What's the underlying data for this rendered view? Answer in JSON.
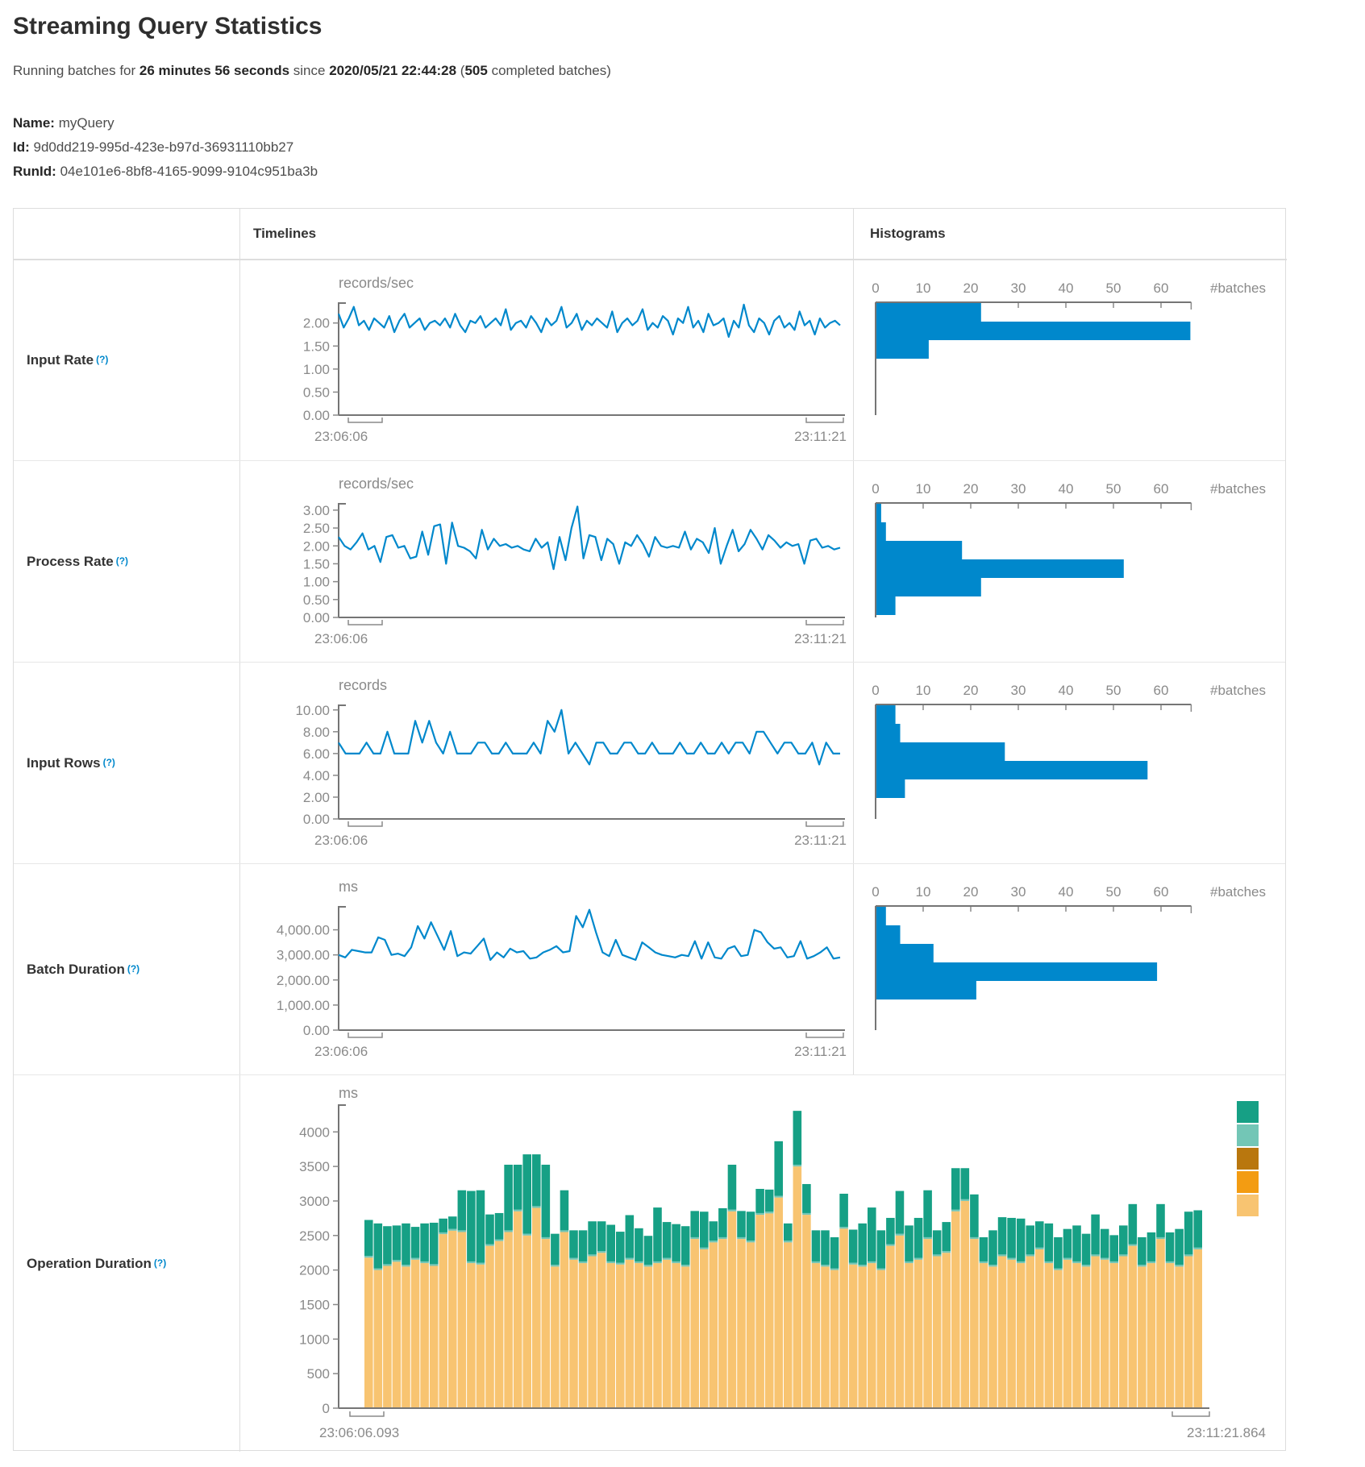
{
  "page": {
    "title": "Streaming Query Statistics"
  },
  "summary": {
    "p1": "Running batches for",
    "duration": "26 minutes 56 seconds",
    "p2": "since",
    "start_time": "2020/05/21 22:44:28",
    "paren": "(",
    "completed_count": "505",
    "p3": "completed batches)"
  },
  "query": {
    "name_label": "Name:",
    "name": "myQuery",
    "id_label": "Id:",
    "id": "9d0dd219-995d-423e-b97d-36931110bb27",
    "runid_label": "RunId:",
    "runid": "04e101e6-8bf8-4165-9099-9104c951ba3b"
  },
  "table": {
    "timelines_header": "Timelines",
    "histograms_header": "Histograms"
  },
  "colors": {
    "line_blue": "#0088CC",
    "bar_blue": "#0088CC",
    "axis_gray": "#757575",
    "label_gray": "#8a8a8a"
  },
  "rows": [
    {
      "label": "Input Rate",
      "help": "(?)"
    },
    {
      "label": "Process Rate",
      "help": "(?)"
    },
    {
      "label": "Input Rows",
      "help": "(?)"
    },
    {
      "label": "Batch Duration",
      "help": "(?)"
    },
    {
      "label": "Operation Duration",
      "help": "(?)"
    }
  ],
  "chart_data": [
    {
      "id": "input-rate-timeline",
      "type": "line",
      "title": "records/sec",
      "x_range": [
        "23:06:06",
        "23:11:21"
      ],
      "y_top": 2.45,
      "y_ticks": [
        {
          "v": 0,
          "label": "0.00"
        },
        {
          "v": 0.5,
          "label": "0.50"
        },
        {
          "v": 1,
          "label": "1.00"
        },
        {
          "v": 1.5,
          "label": "1.50"
        },
        {
          "v": 2,
          "label": "2.00"
        }
      ],
      "values": [
        2.2,
        1.9,
        2.1,
        2.35,
        1.95,
        2.05,
        1.85,
        2.1,
        2.0,
        1.9,
        2.15,
        1.8,
        2.05,
        2.2,
        1.9,
        2.0,
        2.1,
        1.85,
        2.0,
        2.05,
        1.95,
        2.1,
        1.9,
        2.2,
        1.95,
        1.8,
        2.05,
        2.0,
        2.15,
        1.9,
        2.0,
        2.1,
        1.95,
        2.3,
        1.85,
        2.0,
        2.05,
        1.9,
        2.15,
        2.0,
        1.8,
        2.1,
        1.95,
        2.05,
        2.35,
        1.9,
        2.0,
        2.2,
        1.85,
        2.05,
        1.95,
        2.1,
        2.0,
        1.9,
        2.25,
        1.8,
        2.0,
        2.1,
        1.95,
        2.05,
        2.3,
        1.85,
        2.0,
        1.9,
        2.15,
        2.05,
        1.75,
        2.1,
        2.0,
        2.35,
        1.9,
        2.05,
        1.8,
        2.2,
        1.95,
        2.0,
        2.1,
        1.7,
        2.05,
        1.9,
        2.4,
        1.95,
        1.8,
        2.1,
        2.0,
        1.75,
        2.05,
        2.15,
        1.9,
        2.0,
        1.85,
        2.25,
        1.95,
        2.05,
        1.75,
        2.1,
        1.9,
        2.0,
        2.05,
        1.95
      ]
    },
    {
      "id": "input-rate-histogram",
      "type": "bar",
      "orientation": "horizontal",
      "xlabel": "#batches",
      "x_max": 66,
      "x_ticks": [
        {
          "v": 0,
          "label": "0"
        },
        {
          "v": 10,
          "label": "10"
        },
        {
          "v": 20,
          "label": "20"
        },
        {
          "v": 30,
          "label": "30"
        },
        {
          "v": 40,
          "label": "40"
        },
        {
          "v": 50,
          "label": "50"
        },
        {
          "v": 60,
          "label": "60"
        }
      ],
      "values": [
        22,
        66,
        11
      ]
    },
    {
      "id": "process-rate-timeline",
      "type": "line",
      "title": "records/sec",
      "x_range": [
        "23:06:06",
        "23:11:21"
      ],
      "y_top": 3.2,
      "y_ticks": [
        {
          "v": 0,
          "label": "0.00"
        },
        {
          "v": 0.5,
          "label": "0.50"
        },
        {
          "v": 1,
          "label": "1.00"
        },
        {
          "v": 1.5,
          "label": "1.50"
        },
        {
          "v": 2,
          "label": "2.00"
        },
        {
          "v": 2.5,
          "label": "2.50"
        },
        {
          "v": 3,
          "label": "3.00"
        }
      ],
      "values": [
        2.25,
        2.0,
        1.9,
        2.1,
        2.35,
        1.9,
        2.0,
        1.55,
        2.25,
        2.3,
        1.95,
        2.0,
        1.65,
        1.7,
        2.4,
        1.75,
        2.55,
        2.6,
        1.5,
        2.65,
        2.0,
        1.95,
        1.85,
        1.65,
        2.45,
        1.9,
        2.2,
        2.0,
        2.05,
        1.95,
        2.0,
        1.9,
        1.85,
        2.2,
        1.95,
        2.1,
        1.35,
        2.25,
        1.6,
        2.5,
        3.1,
        1.65,
        2.3,
        2.25,
        1.6,
        2.2,
        2.05,
        1.5,
        2.1,
        2.0,
        2.3,
        2.05,
        1.7,
        2.25,
        2.0,
        1.95,
        2.0,
        1.95,
        2.4,
        1.9,
        2.2,
        2.1,
        1.8,
        2.5,
        1.5,
        2.0,
        2.45,
        1.85,
        2.05,
        2.45,
        2.2,
        1.9,
        2.3,
        2.15,
        1.95,
        2.1,
        2.0,
        2.05,
        1.5,
        2.15,
        2.2,
        1.95,
        2.0,
        1.9,
        1.95
      ]
    },
    {
      "id": "process-rate-histogram",
      "type": "bar",
      "orientation": "horizontal",
      "xlabel": "#batches",
      "x_max": 66,
      "x_ticks": [
        {
          "v": 0,
          "label": "0"
        },
        {
          "v": 10,
          "label": "10"
        },
        {
          "v": 20,
          "label": "20"
        },
        {
          "v": 30,
          "label": "30"
        },
        {
          "v": 40,
          "label": "40"
        },
        {
          "v": 50,
          "label": "50"
        },
        {
          "v": 60,
          "label": "60"
        }
      ],
      "values": [
        1,
        2,
        18,
        52,
        22,
        4
      ]
    },
    {
      "id": "input-rows-timeline",
      "type": "line",
      "title": "records",
      "x_range": [
        "23:06:06",
        "23:11:21"
      ],
      "y_top": 10.5,
      "y_ticks": [
        {
          "v": 0,
          "label": "0.00"
        },
        {
          "v": 2,
          "label": "2.00"
        },
        {
          "v": 4,
          "label": "4.00"
        },
        {
          "v": 6,
          "label": "6.00"
        },
        {
          "v": 8,
          "label": "8.00"
        },
        {
          "v": 10,
          "label": "10.00"
        }
      ],
      "values": [
        7,
        6,
        6,
        6,
        7,
        6,
        6,
        8,
        6,
        6,
        6,
        9,
        7,
        9,
        7,
        6,
        8,
        6,
        6,
        6,
        7,
        7,
        6,
        6,
        7,
        6,
        6,
        6,
        7,
        6,
        9,
        8,
        10,
        6,
        7,
        6,
        5,
        7,
        7,
        6,
        6,
        7,
        7,
        6,
        6,
        7,
        6,
        6,
        6,
        7,
        6,
        6,
        7,
        6,
        6,
        7,
        6,
        7,
        7,
        6,
        8,
        8,
        7,
        6,
        7,
        7,
        6,
        6,
        7,
        5,
        7,
        6,
        6
      ]
    },
    {
      "id": "input-rows-histogram",
      "type": "bar",
      "orientation": "horizontal",
      "xlabel": "#batches",
      "x_max": 66,
      "x_ticks": [
        {
          "v": 0,
          "label": "0"
        },
        {
          "v": 10,
          "label": "10"
        },
        {
          "v": 20,
          "label": "20"
        },
        {
          "v": 30,
          "label": "30"
        },
        {
          "v": 40,
          "label": "40"
        },
        {
          "v": 50,
          "label": "50"
        },
        {
          "v": 60,
          "label": "60"
        }
      ],
      "values": [
        4,
        5,
        27,
        57,
        6
      ]
    },
    {
      "id": "batch-duration-timeline",
      "type": "line",
      "title": "ms",
      "x_range": [
        "23:06:06",
        "23:11:21"
      ],
      "y_top": 4950,
      "y_ticks": [
        {
          "v": 0,
          "label": "0.00"
        },
        {
          "v": 1000,
          "label": "1,000.00"
        },
        {
          "v": 2000,
          "label": "2,000.00"
        },
        {
          "v": 3000,
          "label": "3,000.00"
        },
        {
          "v": 4000,
          "label": "4,000.00"
        }
      ],
      "values": [
        3000,
        2900,
        3200,
        3150,
        3100,
        3100,
        3700,
        3600,
        3000,
        3050,
        2950,
        3300,
        4150,
        3650,
        4300,
        3750,
        3200,
        3950,
        2950,
        3100,
        3050,
        3350,
        3650,
        2800,
        3100,
        2900,
        3250,
        3100,
        3150,
        2850,
        2900,
        3100,
        3200,
        3350,
        3100,
        3150,
        4550,
        4100,
        4800,
        3900,
        3100,
        2950,
        3600,
        3000,
        2900,
        2800,
        3500,
        3300,
        3100,
        3000,
        2950,
        2900,
        3000,
        2950,
        3550,
        2850,
        3500,
        2900,
        2850,
        3250,
        3350,
        2950,
        3000,
        4000,
        3900,
        3500,
        3250,
        3300,
        2900,
        2950,
        3550,
        2850,
        2950,
        3100,
        3300,
        2850,
        2900
      ]
    },
    {
      "id": "batch-duration-histogram",
      "type": "bar",
      "orientation": "horizontal",
      "xlabel": "#batches",
      "x_max": 66,
      "x_ticks": [
        {
          "v": 0,
          "label": "0"
        },
        {
          "v": 10,
          "label": "10"
        },
        {
          "v": 20,
          "label": "20"
        },
        {
          "v": 30,
          "label": "30"
        },
        {
          "v": 40,
          "label": "40"
        },
        {
          "v": 50,
          "label": "50"
        },
        {
          "v": 60,
          "label": "60"
        }
      ],
      "values": [
        2,
        5,
        12,
        59,
        21
      ]
    },
    {
      "id": "operation-duration-stacked",
      "type": "stacked-bar",
      "title": "ms",
      "x_range": [
        "23:06:06.093",
        "23:11:21.864"
      ],
      "y_top": 4400,
      "y_ticks": [
        {
          "v": 0,
          "label": "0"
        },
        {
          "v": 500,
          "label": "500"
        },
        {
          "v": 1000,
          "label": "1000"
        },
        {
          "v": 1500,
          "label": "1500"
        },
        {
          "v": 2000,
          "label": "2000"
        },
        {
          "v": 2500,
          "label": "2500"
        },
        {
          "v": 3000,
          "label": "3000"
        },
        {
          "v": 3500,
          "label": "3500"
        },
        {
          "v": 4000,
          "label": "4000"
        }
      ],
      "legend_colors": [
        "#16A085",
        "#73C6B6",
        "#B9770E",
        "#F39C12",
        "#F8C471"
      ],
      "series": [
        {
          "name": "light-orange-bottom",
          "color": "#F8C471",
          "values": [
            2180,
            2000,
            2060,
            2120,
            2050,
            2150,
            2100,
            2060,
            2520,
            2570,
            2550,
            2100,
            2080,
            2350,
            2420,
            2550,
            2850,
            2500,
            2900,
            2450,
            2050,
            2550,
            2150,
            2100,
            2200,
            2250,
            2100,
            2080,
            2150,
            2100,
            2050,
            2100,
            2150,
            2100,
            2050,
            2450,
            2300,
            2400,
            2450,
            2850,
            2450,
            2400,
            2800,
            2820,
            3050,
            2400,
            3500,
            2800,
            2100,
            2050,
            2000,
            2600,
            2080,
            2050,
            2100,
            2000,
            2350,
            2500,
            2100,
            2150,
            2450,
            2200,
            2250,
            2850,
            3000,
            2450,
            2100,
            2050,
            2200,
            2150,
            2100,
            2200,
            2300,
            2100,
            2000,
            2150,
            2100,
            2050,
            2200,
            2150,
            2100,
            2200,
            2350,
            2050,
            2100,
            2450,
            2100,
            2050,
            2200,
            2300
          ]
        },
        {
          "name": "light-teal-sliver",
          "color": "#73C6B6",
          "const_value": 25
        },
        {
          "name": "teal-top",
          "color": "#16A085",
          "values": [
            520,
            650,
            550,
            500,
            600,
            450,
            550,
            600,
            200,
            180,
            580,
            1020,
            1050,
            430,
            380,
            950,
            650,
            1150,
            750,
            1050,
            450,
            580,
            400,
            450,
            480,
            430,
            530,
            450,
            620,
            480,
            420,
            780,
            520,
            540,
            560,
            380,
            520,
            280,
            420,
            650,
            380,
            420,
            350,
            320,
            790,
            250,
            780,
            420,
            450,
            500,
            450,
            480,
            480,
            600,
            780,
            550,
            380,
            620,
            520,
            580,
            680,
            350,
            420,
            600,
            450,
            620,
            350,
            500,
            540,
            580,
            620,
            420,
            380,
            550,
            450,
            420,
            520,
            450,
            580,
            420,
            380,
            420,
            580,
            400,
            420,
            480,
            420,
            520,
            620,
            540
          ]
        }
      ]
    }
  ]
}
